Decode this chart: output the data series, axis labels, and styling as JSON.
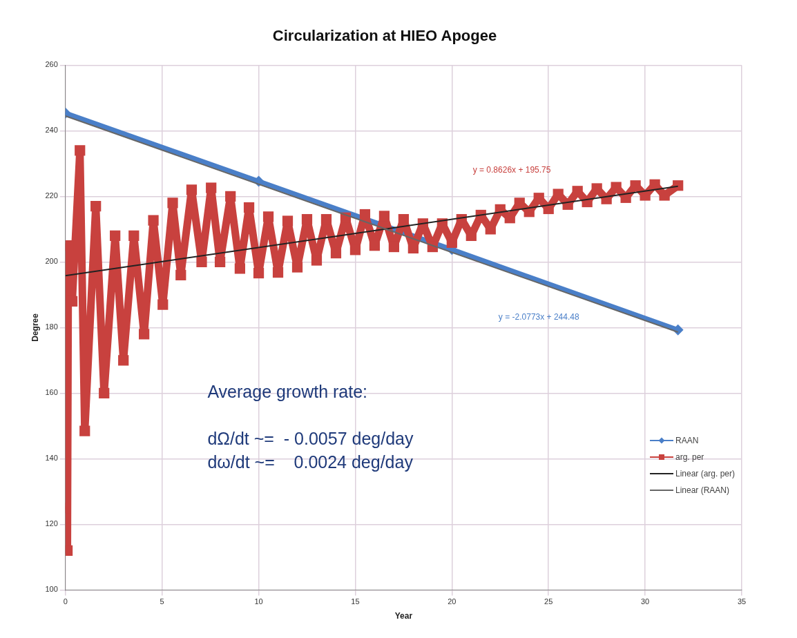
{
  "chart_data": {
    "type": "line",
    "title": "Circularization at HIEO Apogee",
    "xlabel": "Year",
    "ylabel": "Degree",
    "xlim": [
      0,
      35
    ],
    "xticks": [
      0,
      5,
      10,
      15,
      20,
      25,
      30,
      35
    ],
    "ylim": [
      100,
      260
    ],
    "yticks": [
      100,
      120,
      140,
      160,
      180,
      200,
      220,
      240,
      260
    ],
    "grid": true,
    "legend": "right",
    "series": [
      {
        "name": "RAAN",
        "color": "#4a7fc8",
        "marker": "diamond",
        "x": [
          0,
          10,
          20,
          31.7
        ],
        "values": [
          245.4,
          224.6,
          203.8,
          179.3
        ]
      },
      {
        "name": "arg. per",
        "color": "#c8413e",
        "marker": "square",
        "x": [
          0,
          0.1,
          0.15,
          0.35,
          0.75,
          1.0,
          1.57,
          2.0,
          2.57,
          3.0,
          3.54,
          4.07,
          4.55,
          5.04,
          5.55,
          5.97,
          6.53,
          7.05,
          7.54,
          8.0,
          8.54,
          9.03,
          9.5,
          10.0,
          10.5,
          11,
          11.5,
          12,
          12.5,
          13,
          13.5,
          14,
          14.5,
          15,
          15.5,
          16,
          16.5,
          17,
          17.5,
          18,
          18.5,
          19,
          19.5,
          20,
          20.5,
          21,
          21.5,
          22,
          22.5,
          23,
          23.5,
          24,
          24.5,
          25,
          25.5,
          26,
          26.5,
          27,
          27.5,
          28,
          28.5,
          29,
          29.5,
          30,
          30.5,
          31,
          31.7
        ],
        "values": [
          125,
          112,
          205,
          188,
          234,
          148.5,
          217,
          160,
          208,
          170,
          208,
          178,
          212.7,
          187,
          218,
          196,
          222,
          200,
          222.6,
          200,
          220,
          198,
          216.6,
          196.6,
          213.8,
          196.8,
          212.5,
          198.4,
          213,
          200.5,
          213,
          202.7,
          213.5,
          203.7,
          214.5,
          205,
          214,
          204.6,
          213,
          204.2,
          211.7,
          204.6,
          211.7,
          205.9,
          213,
          208,
          214.3,
          210,
          216,
          213.4,
          218,
          215.3,
          219.5,
          216.2,
          220.7,
          217.5,
          221.6,
          218.3,
          222.4,
          219.2,
          222.8,
          219.6,
          223.3,
          220.3,
          223.6,
          220.3,
          223.3
        ]
      },
      {
        "name": "Linear (arg. per)",
        "color": "#222222",
        "type": "line",
        "marker": "none",
        "x": [
          0,
          31.7
        ],
        "values": [
          195.8,
          223.1
        ]
      },
      {
        "name": "Linear (RAAN)",
        "color": "#666666",
        "type": "line",
        "marker": "none",
        "x": [
          0,
          31.7
        ],
        "values": [
          244.5,
          178.6
        ]
      }
    ],
    "annotations": [
      "y = 0.8626x + 195.75",
      "y = -2.0773x + 244.48",
      "Average growth rate:",
      "dΩ/dt ~=  - 0.0057 deg/day",
      "dω/dt ~=    0.0024 deg/day"
    ]
  }
}
